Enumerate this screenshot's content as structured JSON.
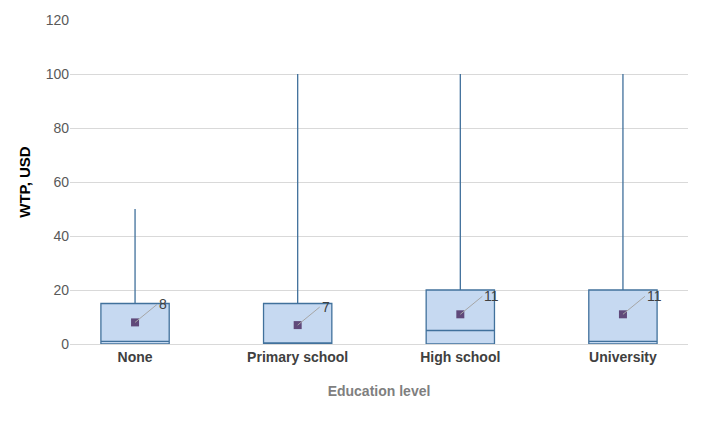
{
  "chart_data": {
    "type": "box",
    "xlabel": "Education level",
    "ylabel": "WTP, USD",
    "categories": [
      "None",
      "Primary school",
      "High school",
      "University"
    ],
    "min": [
      0,
      0,
      0,
      0
    ],
    "q1": [
      0,
      0,
      0,
      0
    ],
    "median": [
      1,
      0,
      5,
      1
    ],
    "q3": [
      15,
      15,
      20,
      20
    ],
    "max": [
      50,
      100,
      100,
      100
    ],
    "mean": [
      8,
      7,
      11,
      11
    ],
    "data_labels": true,
    "color": "#c6d9f1",
    "ylim": [
      0,
      120
    ],
    "yticks": [
      0,
      20,
      40,
      60,
      80,
      100,
      120
    ],
    "grid": true
  }
}
